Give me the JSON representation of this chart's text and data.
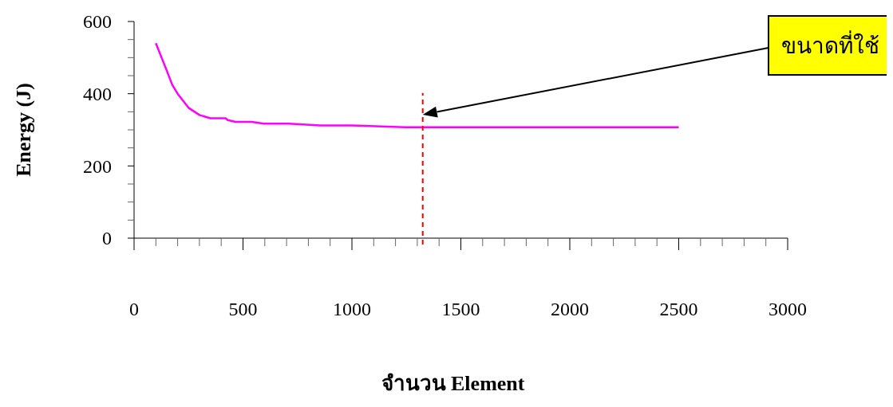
{
  "chart_data": {
    "type": "line",
    "xlabel": "จำนวน Element",
    "ylabel": "Energy (J)",
    "series": [
      {
        "color": "#ff00ff",
        "x": [
          100,
          150,
          175,
          200,
          250,
          300,
          350,
          420,
          430,
          465,
          540,
          595,
          710,
          855,
          1000,
          1245,
          2500
        ],
        "values": [
          540,
          464,
          425,
          400,
          361,
          341,
          332,
          332,
          327,
          322,
          322,
          317,
          317,
          312,
          312,
          307,
          307
        ]
      }
    ],
    "xlim": [
      0,
      3000
    ],
    "xticks": [
      0,
      {
        "value": 100,
        "label": null
      },
      {
        "value": 200,
        "label": null
      },
      {
        "value": 300,
        "label": null
      },
      {
        "value": 400,
        "label": null
      },
      500,
      {
        "value": 600,
        "label": null
      },
      {
        "value": 700,
        "label": null
      },
      {
        "value": 800,
        "label": null
      },
      {
        "value": 900,
        "label": null
      },
      1000,
      {
        "value": 1100,
        "label": null
      },
      {
        "value": 1200,
        "label": null
      },
      {
        "value": 1300,
        "label": null
      },
      {
        "value": 1400,
        "label": null
      },
      1500,
      {
        "value": 1600,
        "label": null
      },
      {
        "value": 1700,
        "label": null
      },
      {
        "value": 1800,
        "label": null
      },
      {
        "value": 1900,
        "label": null
      },
      2000,
      {
        "value": 2100,
        "label": null
      },
      {
        "value": 2200,
        "label": null
      },
      {
        "value": 2300,
        "label": null
      },
      {
        "value": 2400,
        "label": null
      },
      2500,
      {
        "value": 2600,
        "label": null
      },
      {
        "value": 2700,
        "label": null
      },
      {
        "value": 2800,
        "label": null
      },
      {
        "value": 2900,
        "label": null
      },
      3000
    ],
    "ylim": [
      0,
      600
    ],
    "yticks": [
      0,
      {
        "value": 50,
        "label": null
      },
      {
        "value": 100,
        "label": null
      },
      {
        "value": 150,
        "label": null
      },
      200,
      {
        "value": 250,
        "label": null
      },
      {
        "value": 300,
        "label": null
      },
      {
        "value": 350,
        "label": null
      },
      400,
      {
        "value": 450,
        "label": null
      },
      {
        "value": 500,
        "label": null
      },
      {
        "value": 550,
        "label": null
      },
      600
    ],
    "ref_lines": [
      {
        "axis": "x",
        "value": 1325,
        "color": "#ff0000",
        "line_style": "dashed"
      }
    ],
    "annotations": [
      "ขนาดที่ใช้"
    ],
    "grid": false,
    "marker": "none",
    "line_style": "solid"
  }
}
